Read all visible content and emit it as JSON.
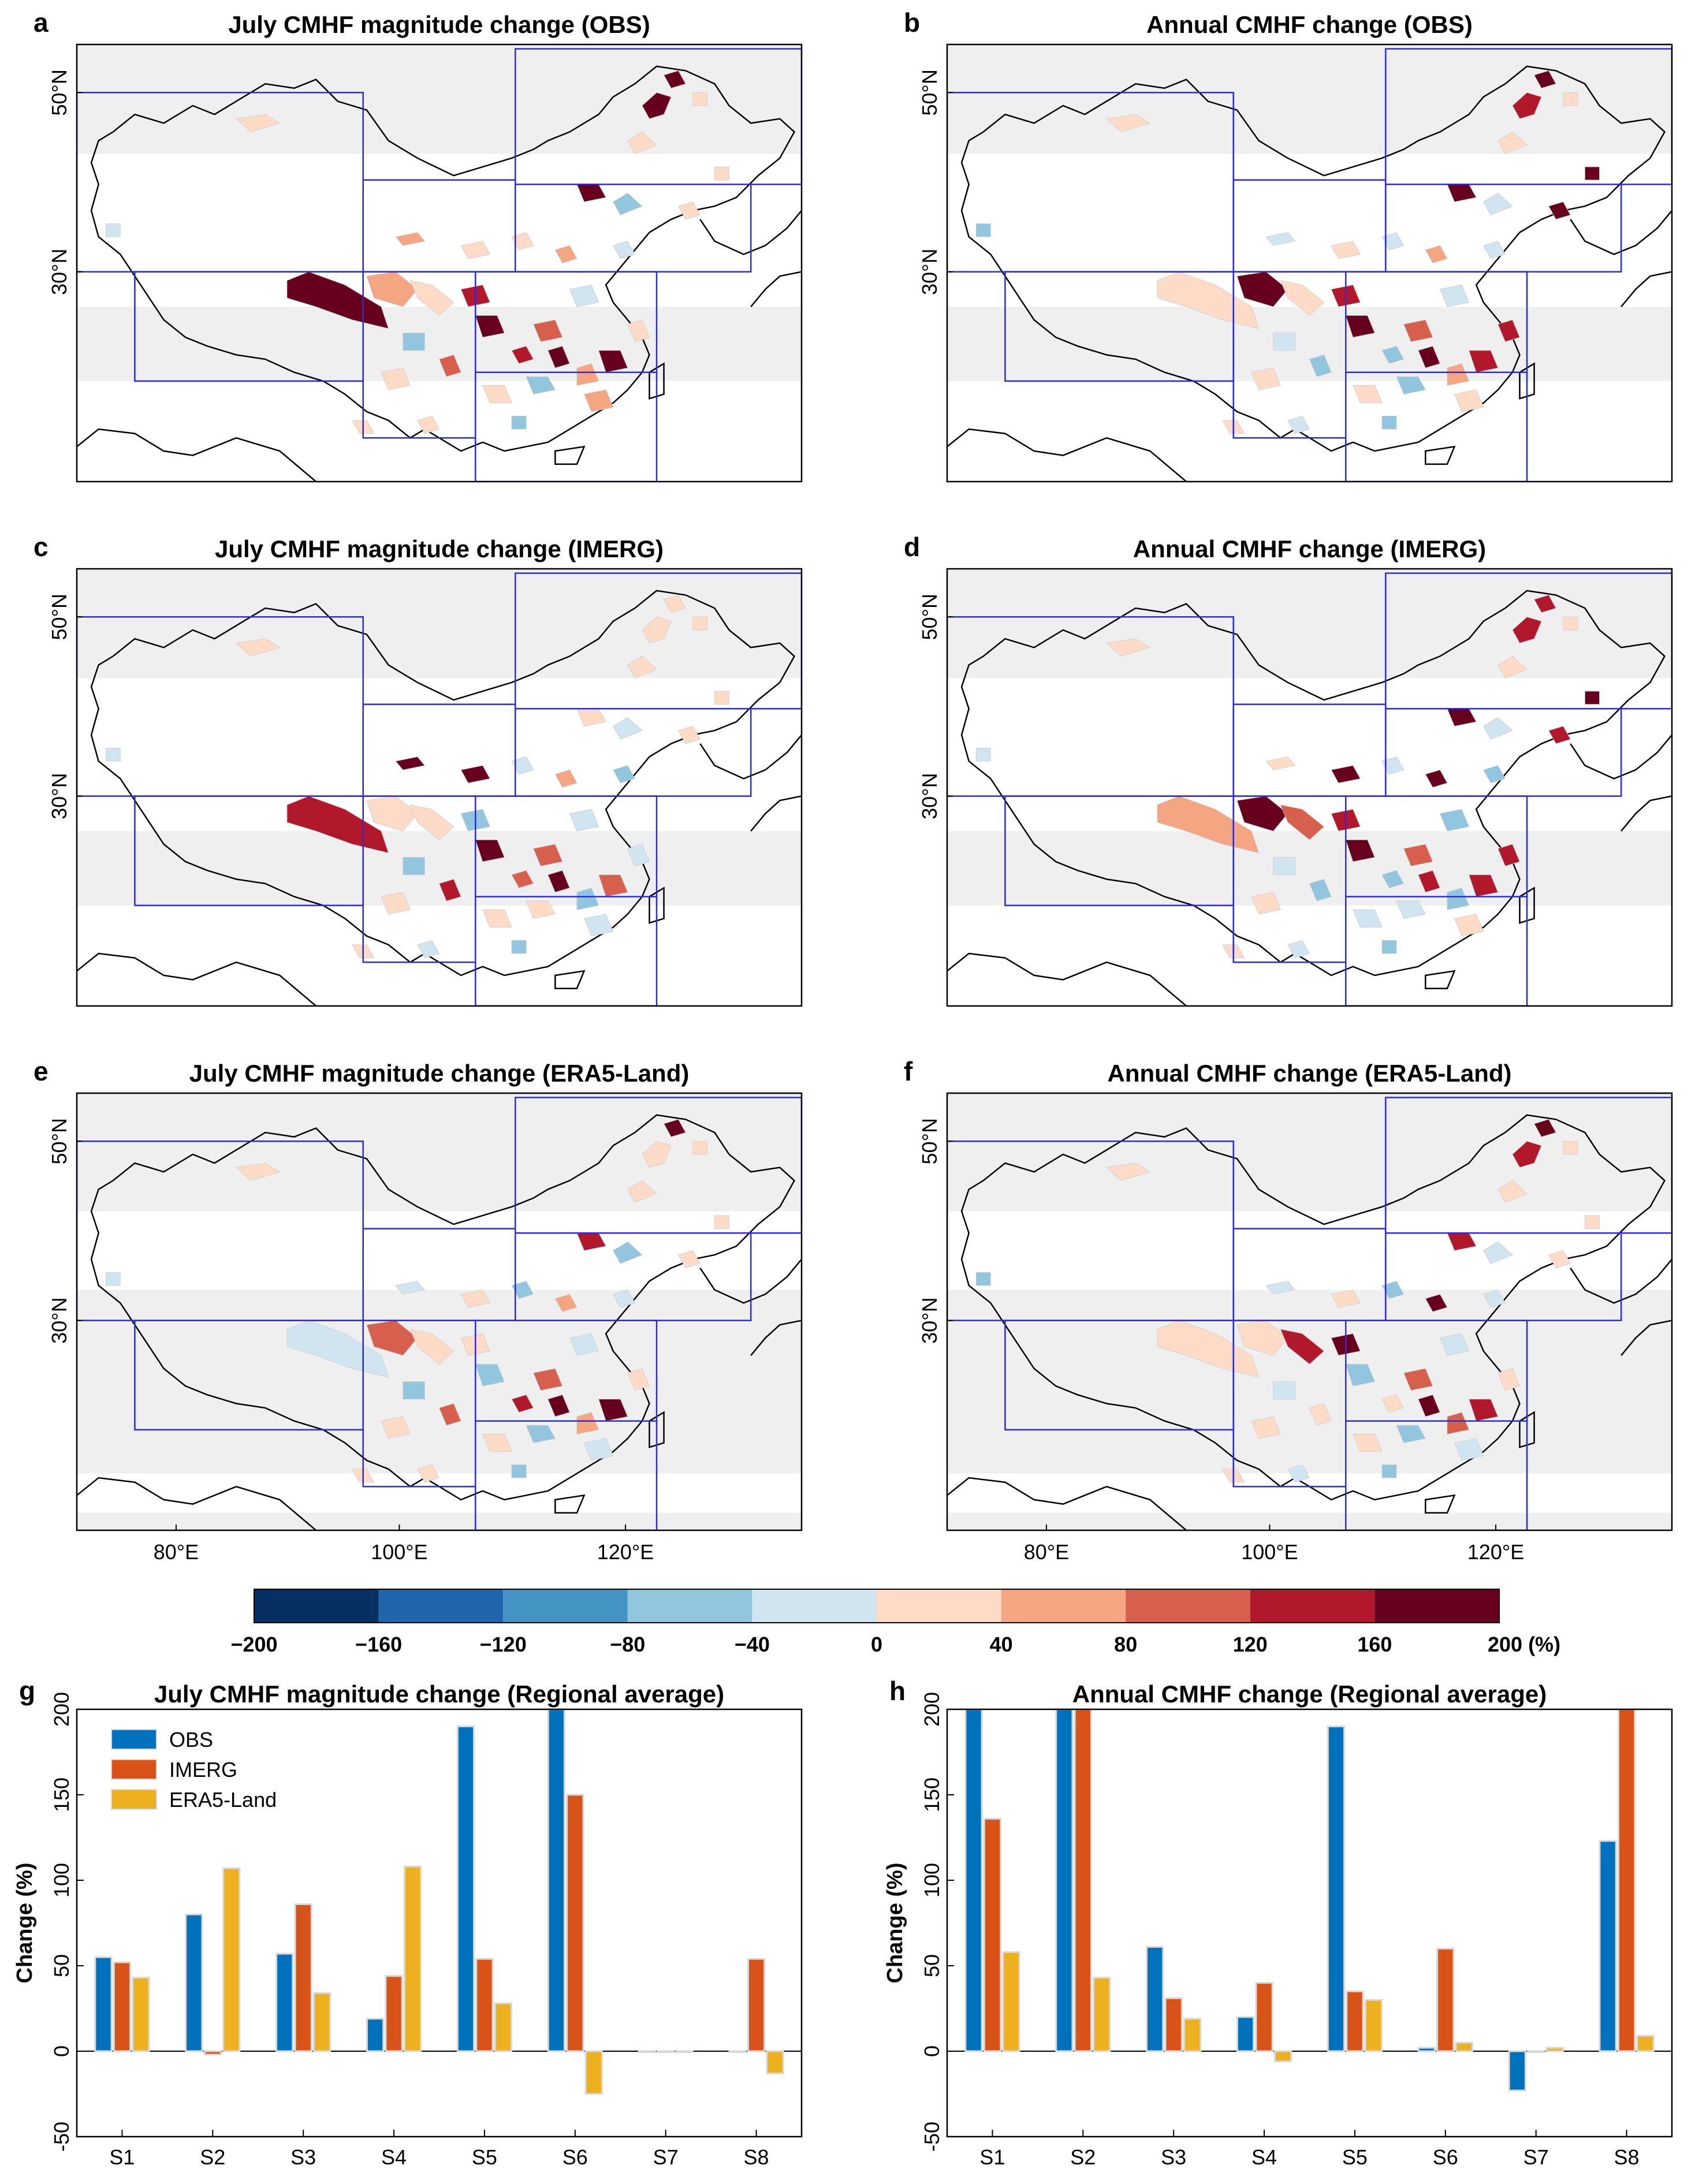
{
  "colors": {
    "obs": "#0072BD",
    "imerg": "#D95319",
    "era5": "#EDB120",
    "region_box": "#2a2ae6",
    "shade": "#efefef",
    "palette": [
      "#053061",
      "#2166ac",
      "#4393c3",
      "#92c5de",
      "#d1e5f0",
      "#fddbc7",
      "#f4a582",
      "#d6604d",
      "#b2182b",
      "#67001f"
    ]
  },
  "maps": [
    {
      "label": "a",
      "title": "July CMHF magnitude change (OBS)"
    },
    {
      "label": "b",
      "title": "Annual CMHF change (OBS)"
    },
    {
      "label": "c",
      "title": "July CMHF magnitude change (IMERG)"
    },
    {
      "label": "d",
      "title": "Annual CMHF change (IMERG)"
    },
    {
      "label": "e",
      "title": "July CMHF magnitude change (ERA5-Land)"
    },
    {
      "label": "f",
      "title": "Annual CMHF change (ERA5-Land)"
    }
  ],
  "map_axes": {
    "lat_ticks": [
      "50°N",
      "30°N"
    ],
    "lon_ticks": [
      "80°E",
      "100°E",
      "120°E"
    ]
  },
  "colorbar": {
    "ticks": [
      "−200",
      "−160",
      "−120",
      "−80",
      "−40",
      "0",
      "40",
      "80",
      "120",
      "160",
      "200 (%)"
    ]
  },
  "chart_data": [
    {
      "type": "bar",
      "label": "g",
      "title": "July CMHF magnitude change (Regional average)",
      "ylabel": "Change (%)",
      "xlabel": "",
      "ylim": [
        -50,
        200
      ],
      "yticks": [
        "-50",
        "0",
        "50",
        "100",
        "150",
        "200"
      ],
      "categories": [
        "S1",
        "S2",
        "S3",
        "S4",
        "S5",
        "S6",
        "S7",
        "S8"
      ],
      "legend_position": "top-left",
      "series": [
        {
          "name": "OBS",
          "values": [
            55,
            80,
            57,
            19,
            190,
            200,
            0,
            0
          ]
        },
        {
          "name": "IMERG",
          "values": [
            52,
            -2,
            86,
            44,
            54,
            150,
            0,
            54
          ]
        },
        {
          "name": "ERA5-Land",
          "values": [
            43,
            107,
            34,
            108,
            28,
            -25,
            0,
            -13
          ]
        }
      ]
    },
    {
      "type": "bar",
      "label": "h",
      "title": "Annual CMHF change (Regional average)",
      "ylabel": "Change (%)",
      "xlabel": "",
      "ylim": [
        -50,
        200
      ],
      "yticks": [
        "-50",
        "0",
        "50",
        "100",
        "150",
        "200"
      ],
      "categories": [
        "S1",
        "S2",
        "S3",
        "S4",
        "S5",
        "S6",
        "S7",
        "S8"
      ],
      "series": [
        {
          "name": "OBS",
          "values": [
            200,
            200,
            61,
            20,
            190,
            2,
            -23,
            123
          ]
        },
        {
          "name": "IMERG",
          "values": [
            136,
            200,
            31,
            40,
            35,
            60,
            0,
            200
          ]
        },
        {
          "name": "ERA5-Land",
          "values": [
            58,
            43,
            19,
            -6,
            30,
            5,
            2,
            9
          ]
        }
      ]
    }
  ]
}
